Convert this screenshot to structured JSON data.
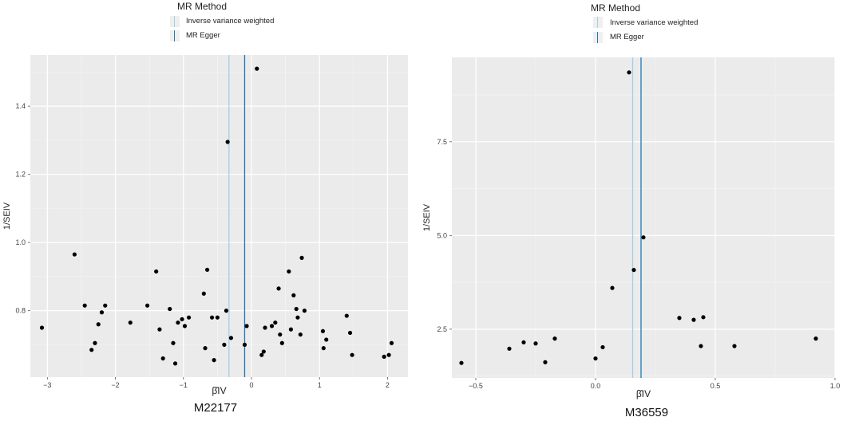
{
  "legend": {
    "title": "MR Method",
    "entries": [
      {
        "label": "Inverse variance weighted",
        "color": "#a6cee3"
      },
      {
        "label": "MR Egger",
        "color": "#1f78b4"
      }
    ]
  },
  "chart_data": [
    {
      "type": "scatter",
      "title": "M22177",
      "xlabel": "β̂IV",
      "ylabel": "1/SEIV",
      "xlim": [
        -3.25,
        2.3
      ],
      "ylim": [
        0.605,
        1.55
      ],
      "xticks": [
        -3,
        -2,
        -1,
        0,
        1,
        2
      ],
      "xtick_labels": [
        "−3",
        "−2",
        "−1",
        "0",
        "1",
        "2"
      ],
      "yticks": [
        0.8,
        1.0,
        1.2,
        1.4
      ],
      "ytick_labels": [
        "0.8",
        "1.0",
        "1.2",
        "1.4"
      ],
      "grid": true,
      "vlines": [
        {
          "method": "Inverse variance weighted",
          "x": -0.33,
          "color": "#a6cee3"
        },
        {
          "method": "MR Egger",
          "x": -0.1,
          "color": "#1f78b4"
        }
      ],
      "points": [
        [
          0.08,
          1.51
        ],
        [
          -0.35,
          1.295
        ],
        [
          -2.6,
          0.965
        ],
        [
          -3.08,
          0.75
        ],
        [
          -2.45,
          0.815
        ],
        [
          -2.35,
          0.685
        ],
        [
          -2.3,
          0.705
        ],
        [
          -2.25,
          0.76
        ],
        [
          -2.2,
          0.795
        ],
        [
          -2.15,
          0.815
        ],
        [
          -1.78,
          0.765
        ],
        [
          -1.53,
          0.815
        ],
        [
          -1.4,
          0.915
        ],
        [
          -1.35,
          0.745
        ],
        [
          -1.3,
          0.66
        ],
        [
          -1.2,
          0.805
        ],
        [
          -1.15,
          0.705
        ],
        [
          -1.12,
          0.645
        ],
        [
          -1.08,
          0.765
        ],
        [
          -1.02,
          0.775
        ],
        [
          -0.98,
          0.755
        ],
        [
          -0.92,
          0.78
        ],
        [
          -0.7,
          0.85
        ],
        [
          -0.68,
          0.69
        ],
        [
          -0.65,
          0.92
        ],
        [
          -0.58,
          0.78
        ],
        [
          -0.55,
          0.655
        ],
        [
          -0.5,
          0.78
        ],
        [
          -0.4,
          0.7
        ],
        [
          -0.37,
          0.8
        ],
        [
          -0.3,
          0.72
        ],
        [
          -0.1,
          0.7
        ],
        [
          -0.07,
          0.755
        ],
        [
          0.15,
          0.67
        ],
        [
          0.18,
          0.68
        ],
        [
          0.2,
          0.75
        ],
        [
          0.3,
          0.755
        ],
        [
          0.35,
          0.765
        ],
        [
          0.4,
          0.865
        ],
        [
          0.42,
          0.73
        ],
        [
          0.45,
          0.705
        ],
        [
          0.55,
          0.915
        ],
        [
          0.58,
          0.745
        ],
        [
          0.62,
          0.845
        ],
        [
          0.66,
          0.805
        ],
        [
          0.68,
          0.78
        ],
        [
          0.72,
          0.73
        ],
        [
          0.74,
          0.955
        ],
        [
          0.78,
          0.8
        ],
        [
          1.05,
          0.74
        ],
        [
          1.06,
          0.69
        ],
        [
          1.1,
          0.715
        ],
        [
          1.4,
          0.785
        ],
        [
          1.45,
          0.735
        ],
        [
          1.48,
          0.67
        ],
        [
          1.95,
          0.665
        ],
        [
          2.02,
          0.67
        ],
        [
          2.06,
          0.705
        ]
      ]
    },
    {
      "type": "scatter",
      "title": "M36559",
      "xlabel": "β̂IV",
      "ylabel": "1/SEIV",
      "xlim": [
        -0.6,
        1.0
      ],
      "ylim": [
        1.2,
        9.75
      ],
      "xticks": [
        -0.5,
        0.0,
        0.5,
        1.0
      ],
      "xtick_labels": [
        "−0.5",
        "0.0",
        "0.5",
        "1.0"
      ],
      "yticks": [
        2.5,
        5.0,
        7.5
      ],
      "ytick_labels": [
        "2.5",
        "5.0",
        "7.5"
      ],
      "grid": true,
      "vlines": [
        {
          "method": "Inverse variance weighted",
          "x": 0.155,
          "color": "#a6cee3"
        },
        {
          "method": "MR Egger",
          "x": 0.19,
          "color": "#1f78b4"
        }
      ],
      "points": [
        [
          0.14,
          9.35
        ],
        [
          0.2,
          4.95
        ],
        [
          0.16,
          4.08
        ],
        [
          0.07,
          3.6
        ],
        [
          -0.56,
          1.6
        ],
        [
          -0.36,
          1.98
        ],
        [
          -0.3,
          2.15
        ],
        [
          -0.25,
          2.12
        ],
        [
          -0.21,
          1.62
        ],
        [
          -0.17,
          2.25
        ],
        [
          0.0,
          1.72
        ],
        [
          0.03,
          2.02
        ],
        [
          0.35,
          2.8
        ],
        [
          0.41,
          2.75
        ],
        [
          0.44,
          2.05
        ],
        [
          0.45,
          2.82
        ],
        [
          0.58,
          2.05
        ],
        [
          0.92,
          2.25
        ]
      ]
    }
  ]
}
